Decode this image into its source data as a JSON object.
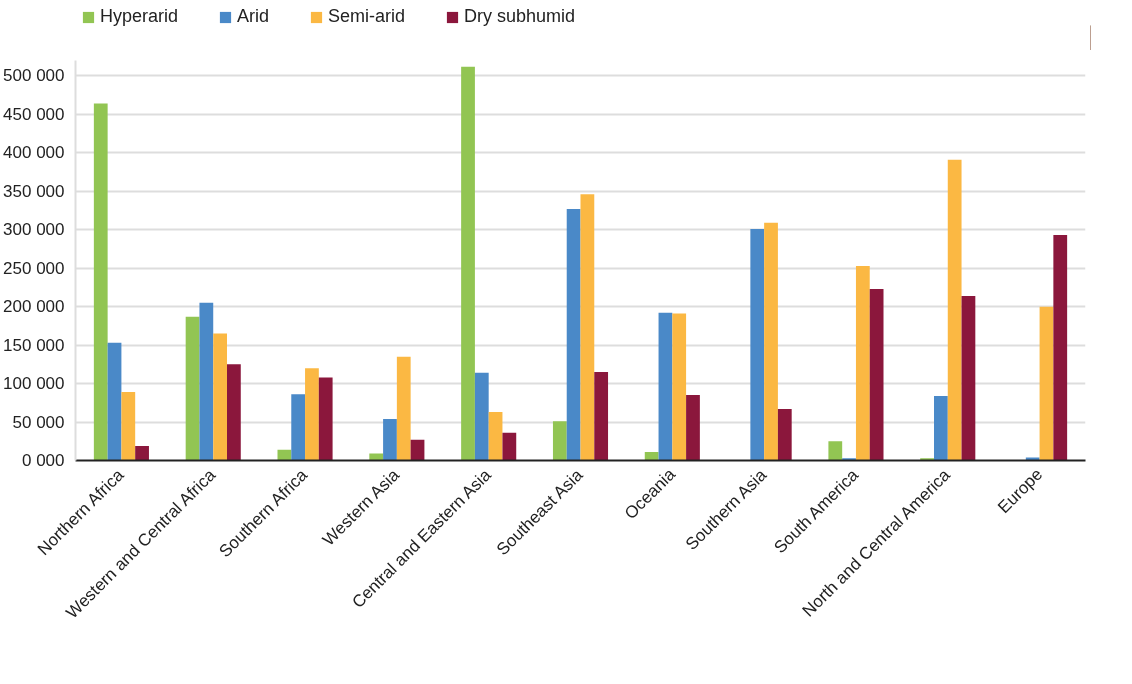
{
  "chart_data": {
    "type": "bar",
    "categories": [
      "Northern Africa",
      "Western and Central Africa",
      "Southern Africa",
      "Western Asia",
      "Central and Eastern Asia",
      "Southeast Asia",
      "Oceania",
      "Southern Asia",
      "South America",
      "North and Central America",
      "Europe"
    ],
    "series": [
      {
        "name": "Hyperarid",
        "color": "#92c553",
        "values": [
          464000,
          187000,
          14000,
          9000,
          512000,
          51000,
          11000,
          null,
          25000,
          3000,
          null
        ]
      },
      {
        "name": "Arid",
        "color": "#4a89c8",
        "values": [
          153000,
          205000,
          86000,
          54000,
          114000,
          327000,
          192000,
          301000,
          3000,
          84000,
          4000
        ]
      },
      {
        "name": "Semi-arid",
        "color": "#fbb843",
        "values": [
          89000,
          165000,
          120000,
          135000,
          63000,
          346000,
          191000,
          309000,
          253000,
          391000,
          200000
        ]
      },
      {
        "name": "Dry subhumid",
        "color": "#8b173c",
        "values": [
          19000,
          125000,
          108000,
          27000,
          36000,
          115000,
          85000,
          67000,
          223000,
          214000,
          293000
        ]
      }
    ],
    "ylim": [
      0,
      520000
    ],
    "yticks": [
      {
        "value": 0,
        "label": "0 000"
      },
      {
        "value": 50000,
        "label": "50 000"
      },
      {
        "value": 100000,
        "label": "100 000"
      },
      {
        "value": 150000,
        "label": "150 000"
      },
      {
        "value": 200000,
        "label": "200 000"
      },
      {
        "value": 250000,
        "label": "250 000"
      },
      {
        "value": 300000,
        "label": "300 000"
      },
      {
        "value": 350000,
        "label": "350 000"
      },
      {
        "value": 400000,
        "label": "400 000"
      },
      {
        "value": 450000,
        "label": "450 000"
      },
      {
        "value": 500000,
        "label": "500 000"
      }
    ],
    "grid": "y",
    "legend": "top left"
  }
}
